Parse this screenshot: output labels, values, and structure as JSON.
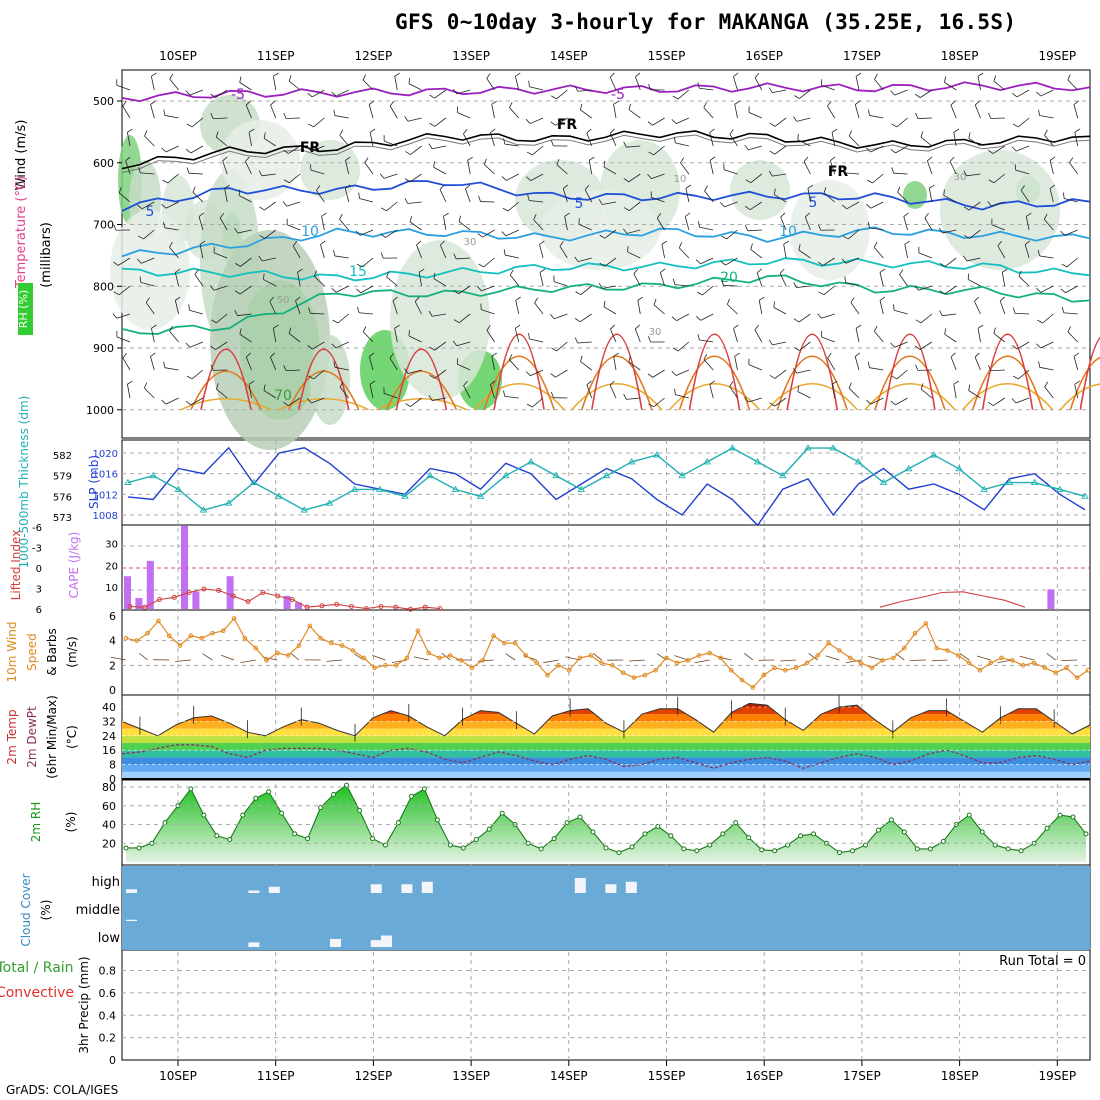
{
  "title": "GFS 0~10day 3-hourly for MAKANGA (35.25E, 16.5S)",
  "footer": "GrADS: COLA/IGES",
  "run_total": "Run Total = 0",
  "chart_data": [
    {
      "type": "heatmap",
      "panel": "upper-air",
      "ylabels": [
        "Wind (m/s)",
        "Temperature (°C)",
        "RH (%)",
        "(millibars)"
      ],
      "x_ticks": [
        "10SEP",
        "11SEP",
        "12SEP",
        "13SEP",
        "14SEP",
        "15SEP",
        "16SEP",
        "17SEP",
        "18SEP",
        "19SEP"
      ],
      "y_ticks": [
        500,
        600,
        700,
        800,
        900,
        1000
      ],
      "contour_labels": [
        "-5",
        "-5",
        "FR",
        "FR",
        "FR",
        "5",
        "5",
        "5",
        "10",
        "10",
        "15",
        "20",
        "10",
        "30",
        "30",
        "30",
        "50",
        "70"
      ],
      "isotherms": [
        {
          "label": "-5",
          "color": "#9b1fbf",
          "p": [
            495,
            488,
            487,
            484,
            482,
            480,
            479,
            478,
            477,
            476
          ]
        },
        {
          "label": "FR",
          "color": "#000000",
          "p": [
            600,
            585,
            572,
            560,
            558,
            556,
            555,
            575,
            563,
            560
          ]
        },
        {
          "label": "5",
          "color": "#1f4fd6",
          "p": [
            668,
            648,
            640,
            635,
            650,
            660,
            648,
            660,
            665,
            668
          ]
        },
        {
          "label": "10",
          "color": "#2aa0e0",
          "p": [
            750,
            735,
            712,
            715,
            720,
            712,
            720,
            712,
            715,
            725
          ]
        },
        {
          "label": "15",
          "color": "#14c0c0",
          "p": [
            780,
            775,
            790,
            775,
            772,
            765,
            762,
            760,
            770,
            780
          ]
        },
        {
          "label": "20",
          "color": "#14b080",
          "p": [
            880,
            860,
            815,
            808,
            808,
            795,
            790,
            800,
            812,
            818
          ]
        }
      ]
    },
    {
      "type": "line",
      "panel": "slp-thickness",
      "ylabels": [
        "1000-500mb Thickness (dm)",
        "SLP (mb)"
      ],
      "left_ticks": [
        573,
        576,
        579,
        582
      ],
      "right_ticks": [
        1008,
        1012,
        1016,
        1020
      ],
      "series": [
        {
          "name": "SLP (mb)",
          "color": "#1f3fd0",
          "values": [
            1011.5,
            1011,
            1017,
            1016,
            1021,
            1014,
            1020,
            1021,
            1018,
            1014,
            1013,
            1012,
            1017,
            1016,
            1013,
            1018,
            1016,
            1011,
            1014,
            1017,
            1015,
            1011,
            1008,
            1014,
            1011,
            1006,
            1013,
            1015,
            1008,
            1014,
            1017,
            1013,
            1014,
            1012,
            1009,
            1015,
            1016,
            1012,
            1009
          ]
        },
        {
          "name": "1000-500mb Thickness (dm)",
          "color": "#20b0b0",
          "values": [
            578,
            579,
            577,
            574,
            575,
            578,
            576,
            574,
            575,
            577,
            577,
            576,
            579,
            577,
            576,
            579,
            581,
            579,
            577,
            579,
            581,
            582,
            579,
            581,
            583,
            581,
            579,
            583,
            583,
            581,
            578,
            580,
            582,
            580,
            577,
            578,
            578,
            577,
            576
          ]
        }
      ]
    },
    {
      "type": "bar",
      "panel": "cape-lifted-index",
      "ylabels": [
        "Lifted Index",
        "CAPE (J/kg)"
      ],
      "left_ticks": [
        "-6",
        "-3",
        "0",
        "3",
        "6"
      ],
      "right_ticks": [
        10,
        20,
        30
      ],
      "cape": [
        15,
        5,
        22,
        0,
        0,
        38,
        8,
        0,
        0,
        15,
        0,
        0,
        0,
        0,
        6,
        3,
        0,
        0,
        0,
        0,
        0,
        0,
        0,
        0,
        0,
        0,
        0,
        0,
        0,
        0,
        0,
        0,
        0,
        0,
        0,
        0,
        0,
        0,
        0,
        0,
        0,
        0,
        0,
        0,
        0,
        0,
        0,
        0,
        0,
        0,
        0,
        0,
        0,
        0,
        0,
        0,
        0,
        0,
        0,
        0,
        0,
        0,
        0,
        0,
        0,
        0,
        0,
        0,
        0,
        0,
        0,
        0,
        0,
        0,
        0,
        0,
        0,
        0,
        0,
        0,
        0,
        9,
        0,
        0,
        0
      ],
      "lifted_index": [
        5.5,
        5.6,
        4.5,
        4.2,
        3.5,
        3.0,
        3.2,
        4.0,
        4.8,
        3.5,
        4.0,
        4.5,
        5.6,
        5.4,
        5.2,
        5.5,
        5.8,
        5.5,
        5.6,
        5.9,
        5.6,
        5.8,
        4.9,
        4.7,
        6
      ]
    },
    {
      "type": "line",
      "panel": "10m-wind",
      "ylabels": [
        "10m Wind",
        "Speed",
        "& Barbs",
        "(m/s)"
      ],
      "y_ticks": [
        0,
        2,
        4,
        6
      ],
      "series": [
        {
          "name": "10m Wind Speed",
          "color": "#e08a20",
          "values": [
            4.2,
            4.0,
            4.6,
            5.6,
            4.4,
            3.6,
            4.4,
            4.2,
            4.6,
            4.8,
            5.8,
            4.2,
            3.4,
            2.4,
            3.0,
            2.8,
            3.6,
            5.2,
            4.2,
            3.8,
            3.6,
            3.2,
            2.6,
            1.8,
            2.0,
            2.0,
            2.6,
            4.8,
            3.0,
            2.6,
            2.8,
            2.4,
            1.8,
            2.4,
            4.4,
            3.8,
            3.8,
            2.8,
            2.2,
            1.2,
            2.0,
            1.6,
            2.6,
            2.8,
            2.2,
            2.0,
            1.4,
            1.0,
            1.2,
            1.6,
            2.6,
            2.2,
            2.4,
            2.8,
            3.0,
            2.6,
            1.6,
            0.8,
            0.2,
            1.2,
            1.8,
            1.6,
            1.8,
            2.2,
            2.8,
            3.8,
            3.2,
            2.6,
            2.2,
            1.8,
            2.4,
            2.6,
            3.4,
            4.6,
            5.4,
            3.4,
            3.2,
            2.8,
            2.2,
            1.6,
            2.2,
            2.6,
            2.4,
            2.0,
            2.2,
            1.8,
            1.4,
            1.8,
            1.0,
            1.6
          ]
        }
      ]
    },
    {
      "type": "area",
      "panel": "2m-temperature",
      "ylabels": [
        "2m Temp",
        "2m DewPt",
        "(6hr Min/Max)",
        "(°C)"
      ],
      "y_ticks": [
        0,
        8,
        16,
        24,
        32,
        40
      ],
      "series": [
        {
          "name": "2m Temp",
          "values": [
            32,
            28,
            24,
            30,
            34,
            35,
            31,
            26,
            24,
            29,
            33,
            31,
            27,
            24,
            34,
            38,
            35,
            29,
            24,
            33,
            38,
            37,
            31,
            25,
            35,
            38,
            39,
            31,
            26,
            36,
            39,
            39,
            33,
            26,
            37,
            42,
            41,
            33,
            27,
            36,
            40,
            41,
            33,
            26,
            34,
            38,
            38,
            32,
            26,
            34,
            39,
            39,
            32,
            25,
            30
          ]
        },
        {
          "name": "2m DewPt",
          "values": [
            14,
            15,
            17,
            19,
            19,
            18,
            14,
            12,
            16,
            17,
            17,
            17,
            16,
            14,
            12,
            16,
            17,
            15,
            11,
            9,
            12,
            15,
            13,
            10,
            8,
            11,
            13,
            11,
            7,
            8,
            11,
            12,
            9,
            6,
            9,
            11,
            12,
            10,
            6,
            9,
            12,
            14,
            12,
            8,
            10,
            14,
            16,
            13,
            9,
            9,
            12,
            13,
            11,
            8,
            10
          ]
        }
      ]
    },
    {
      "type": "area",
      "panel": "2m-rh",
      "ylabels": [
        "2m RH",
        "(%)"
      ],
      "y_ticks": [
        20,
        40,
        60,
        80
      ],
      "series": [
        {
          "name": "2m RH",
          "color": "#1a9a1a",
          "values": [
            15,
            15,
            20,
            42,
            60,
            78,
            50,
            28,
            24,
            50,
            68,
            75,
            52,
            30,
            25,
            58,
            72,
            82,
            55,
            25,
            18,
            42,
            70,
            78,
            45,
            18,
            15,
            24,
            35,
            52,
            40,
            20,
            14,
            25,
            42,
            48,
            32,
            15,
            10,
            16,
            30,
            38,
            28,
            14,
            12,
            18,
            30,
            42,
            26,
            13,
            12,
            18,
            28,
            30,
            20,
            10,
            12,
            18,
            34,
            45,
            32,
            14,
            14,
            22,
            40,
            50,
            32,
            18,
            14,
            12,
            20,
            36,
            50,
            48,
            30
          ]
        }
      ]
    },
    {
      "type": "bar",
      "panel": "cloud-cover",
      "ylabels": [
        "Cloud Cover",
        "(%)"
      ],
      "y_ticks": [
        "high",
        "middle",
        "low"
      ],
      "layers": [
        {
          "name": "high",
          "values": [
            15,
            0,
            0,
            0,
            0,
            0,
            0,
            0,
            0,
            0,
            0,
            0,
            10,
            0,
            25,
            0,
            0,
            0,
            0,
            0,
            0,
            0,
            0,
            0,
            35,
            0,
            0,
            35,
            0,
            45,
            0,
            0,
            0,
            0,
            0,
            0,
            0,
            0,
            0,
            0,
            0,
            0,
            0,
            0,
            60,
            0,
            0,
            35,
            0,
            45,
            0,
            0,
            0,
            0,
            0,
            0,
            0,
            0,
            0,
            0,
            0,
            0,
            0,
            0,
            0,
            0,
            0,
            0,
            0,
            0,
            0,
            0,
            0,
            0,
            0,
            0,
            0,
            0,
            0,
            0,
            0,
            0,
            0,
            0,
            0,
            0,
            0,
            0,
            0,
            0,
            0,
            0,
            0,
            0,
            0
          ]
        },
        {
          "name": "middle",
          "values": [
            5,
            0,
            0,
            0,
            0,
            0,
            0,
            0,
            0,
            0,
            0,
            0,
            0,
            0,
            0,
            0,
            0,
            0,
            0,
            0,
            0,
            0,
            0,
            0,
            0,
            0,
            0,
            0,
            0,
            0,
            0,
            0,
            0,
            0,
            0,
            0,
            0,
            0,
            0,
            0,
            0,
            0,
            0,
            0,
            0,
            0,
            0,
            0,
            0,
            0,
            0,
            0,
            0,
            0,
            0,
            0,
            0,
            0,
            0,
            0,
            0,
            0,
            0,
            0,
            0,
            0,
            0,
            0,
            0,
            0,
            0,
            0,
            0,
            0,
            0,
            0,
            0,
            0,
            0,
            0,
            0,
            0,
            0,
            0,
            0,
            0,
            0,
            0,
            0,
            0,
            0,
            0,
            0,
            0,
            0
          ]
        },
        {
          "name": "low",
          "values": [
            0,
            0,
            0,
            0,
            0,
            0,
            0,
            0,
            0,
            0,
            0,
            0,
            20,
            0,
            0,
            0,
            0,
            0,
            0,
            0,
            35,
            0,
            0,
            0,
            30,
            50,
            0,
            0,
            0,
            0,
            0,
            0,
            0,
            0,
            0,
            0,
            0,
            0,
            0,
            0,
            0,
            0,
            0,
            0,
            0,
            0,
            0,
            0,
            0,
            0,
            0,
            0,
            0,
            0,
            0,
            0,
            0,
            0,
            0,
            0,
            0,
            0,
            0,
            0,
            0,
            0,
            0,
            0,
            0,
            0,
            0,
            0,
            0,
            0,
            0,
            0,
            0,
            0,
            0,
            0,
            0,
            0,
            0,
            0,
            0,
            0,
            0,
            0,
            0,
            0,
            0,
            0,
            0,
            0,
            0
          ]
        }
      ]
    },
    {
      "type": "bar",
      "panel": "3hr-precip",
      "ylabels": [
        "Total / Rain",
        "Convective",
        "3hr Precip (mm)"
      ],
      "y_ticks": [
        0,
        0.2,
        0.4,
        0.6,
        0.8
      ],
      "series": [
        {
          "name": "Total / Rain",
          "values": []
        },
        {
          "name": "Convective",
          "values": []
        }
      ]
    }
  ]
}
